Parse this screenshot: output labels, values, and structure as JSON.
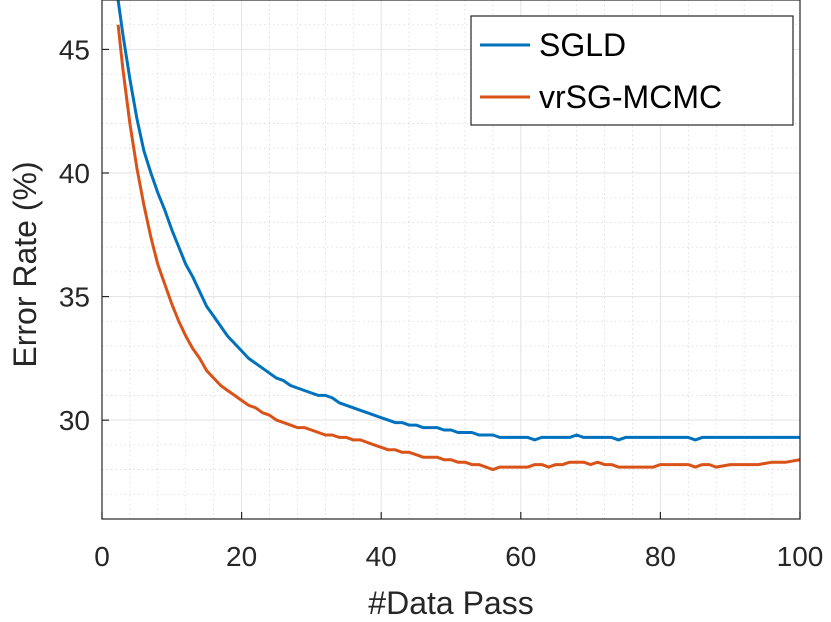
{
  "chart_data": {
    "type": "line",
    "title": "",
    "xlabel": "#Data Pass",
    "ylabel": "Error Rate (%)",
    "xlim": [
      0,
      100
    ],
    "ylim": [
      26,
      47
    ],
    "x_ticks": [
      "0",
      "20",
      "40",
      "60",
      "80",
      "100"
    ],
    "y_ticks": [
      "30",
      "35",
      "40",
      "45"
    ],
    "grid": "major-and-minor",
    "legend_position": "top-right",
    "series": [
      {
        "name": "SGLD",
        "color": "#0072BD",
        "x": [
          2.3,
          3,
          4,
          5,
          6,
          7,
          8,
          9,
          10,
          11,
          12,
          13,
          14,
          15,
          16,
          17,
          18,
          19,
          20,
          21,
          22,
          23,
          24,
          25,
          26,
          27,
          28,
          29,
          30,
          31,
          32,
          33,
          34,
          35,
          36,
          37,
          38,
          39,
          40,
          41,
          42,
          43,
          44,
          45,
          46,
          47,
          48,
          49,
          50,
          51,
          52,
          53,
          54,
          55,
          56,
          57,
          58,
          59,
          60,
          61,
          62,
          63,
          64,
          65,
          66,
          67,
          68,
          69,
          70,
          71,
          72,
          73,
          74,
          75,
          76,
          78,
          80,
          82,
          84,
          85,
          86,
          88,
          90,
          92,
          94,
          96,
          98,
          100
        ],
        "y": [
          47,
          45.6,
          43.8,
          42.2,
          40.9,
          40.0,
          39.2,
          38.5,
          37.7,
          37.0,
          36.3,
          35.8,
          35.2,
          34.6,
          34.2,
          33.8,
          33.4,
          33.1,
          32.8,
          32.5,
          32.3,
          32.1,
          31.9,
          31.7,
          31.6,
          31.4,
          31.3,
          31.2,
          31.1,
          31.0,
          31.0,
          30.9,
          30.7,
          30.6,
          30.5,
          30.4,
          30.3,
          30.2,
          30.1,
          30.0,
          29.9,
          29.9,
          29.8,
          29.8,
          29.7,
          29.7,
          29.7,
          29.6,
          29.6,
          29.5,
          29.5,
          29.5,
          29.4,
          29.4,
          29.4,
          29.3,
          29.3,
          29.3,
          29.3,
          29.3,
          29.2,
          29.3,
          29.3,
          29.3,
          29.3,
          29.3,
          29.4,
          29.3,
          29.3,
          29.3,
          29.3,
          29.3,
          29.2,
          29.3,
          29.3,
          29.3,
          29.3,
          29.3,
          29.3,
          29.2,
          29.3,
          29.3,
          29.3,
          29.3,
          29.3,
          29.3,
          29.3,
          29.3
        ]
      },
      {
        "name": "vrSG-MCMC",
        "color": "#D95319",
        "x": [
          2.3,
          3,
          4,
          5,
          6,
          7,
          8,
          9,
          10,
          11,
          12,
          13,
          14,
          15,
          16,
          17,
          18,
          19,
          20,
          21,
          22,
          23,
          24,
          25,
          26,
          27,
          28,
          29,
          30,
          31,
          32,
          33,
          34,
          35,
          36,
          37,
          38,
          39,
          40,
          41,
          42,
          43,
          44,
          45,
          46,
          47,
          48,
          49,
          50,
          51,
          52,
          53,
          54,
          55,
          56,
          57,
          58,
          59,
          60,
          61,
          62,
          63,
          64,
          65,
          66,
          67,
          68,
          69,
          70,
          71,
          72,
          73,
          74,
          75,
          76,
          77,
          78,
          79,
          80,
          82,
          84,
          85,
          86,
          87,
          88,
          90,
          92,
          94,
          96,
          98,
          100
        ],
        "y": [
          46,
          44.2,
          42.0,
          40.2,
          38.7,
          37.4,
          36.3,
          35.5,
          34.7,
          34.0,
          33.4,
          32.9,
          32.5,
          32.0,
          31.7,
          31.4,
          31.2,
          31.0,
          30.8,
          30.6,
          30.5,
          30.3,
          30.2,
          30.0,
          29.9,
          29.8,
          29.7,
          29.7,
          29.6,
          29.5,
          29.4,
          29.4,
          29.3,
          29.3,
          29.2,
          29.2,
          29.1,
          29.0,
          28.9,
          28.8,
          28.8,
          28.7,
          28.7,
          28.6,
          28.5,
          28.5,
          28.5,
          28.4,
          28.4,
          28.3,
          28.3,
          28.2,
          28.2,
          28.1,
          28.0,
          28.1,
          28.1,
          28.1,
          28.1,
          28.1,
          28.2,
          28.2,
          28.1,
          28.2,
          28.2,
          28.3,
          28.3,
          28.3,
          28.2,
          28.3,
          28.2,
          28.2,
          28.1,
          28.1,
          28.1,
          28.1,
          28.1,
          28.1,
          28.2,
          28.2,
          28.2,
          28.1,
          28.2,
          28.2,
          28.1,
          28.2,
          28.2,
          28.2,
          28.3,
          28.3,
          28.4
        ]
      }
    ]
  }
}
